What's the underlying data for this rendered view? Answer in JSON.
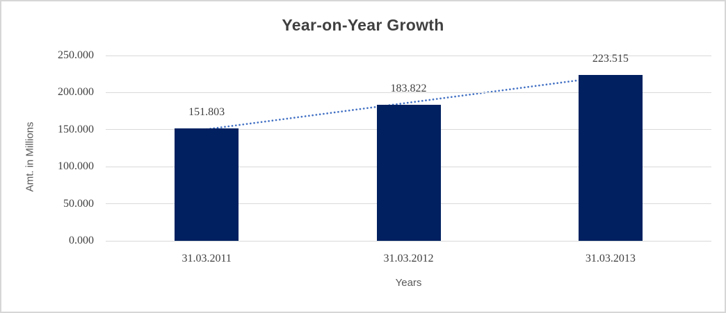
{
  "chart_data": {
    "type": "bar",
    "title": "Year-on-Year Growth",
    "xlabel": "Years",
    "ylabel": "Amt. in Millions",
    "categories": [
      "31.03.2011",
      "31.03.2012",
      "31.03.2013"
    ],
    "values": [
      151.803,
      183.822,
      223.515
    ],
    "data_labels": [
      "151.803",
      "183.822",
      "223.515"
    ],
    "ylim": [
      0,
      250
    ],
    "ytick_step": 50,
    "ytick_labels": [
      "0.000",
      "50.000",
      "100.000",
      "150.000",
      "200.000",
      "250.000"
    ],
    "grid": true,
    "legend": "none",
    "trendline": {
      "type": "linear",
      "style": "dotted"
    },
    "colors": {
      "bar": "#002060",
      "trendline": "#4472C4",
      "gridline": "#D9D9D9",
      "title_text": "#404040",
      "axis_title_text": "#595959",
      "tick_text": "#3F3F3F",
      "data_label_text": "#3F3F3F",
      "frame_border": "#D6D6D6",
      "background": "#FFFFFF"
    }
  }
}
